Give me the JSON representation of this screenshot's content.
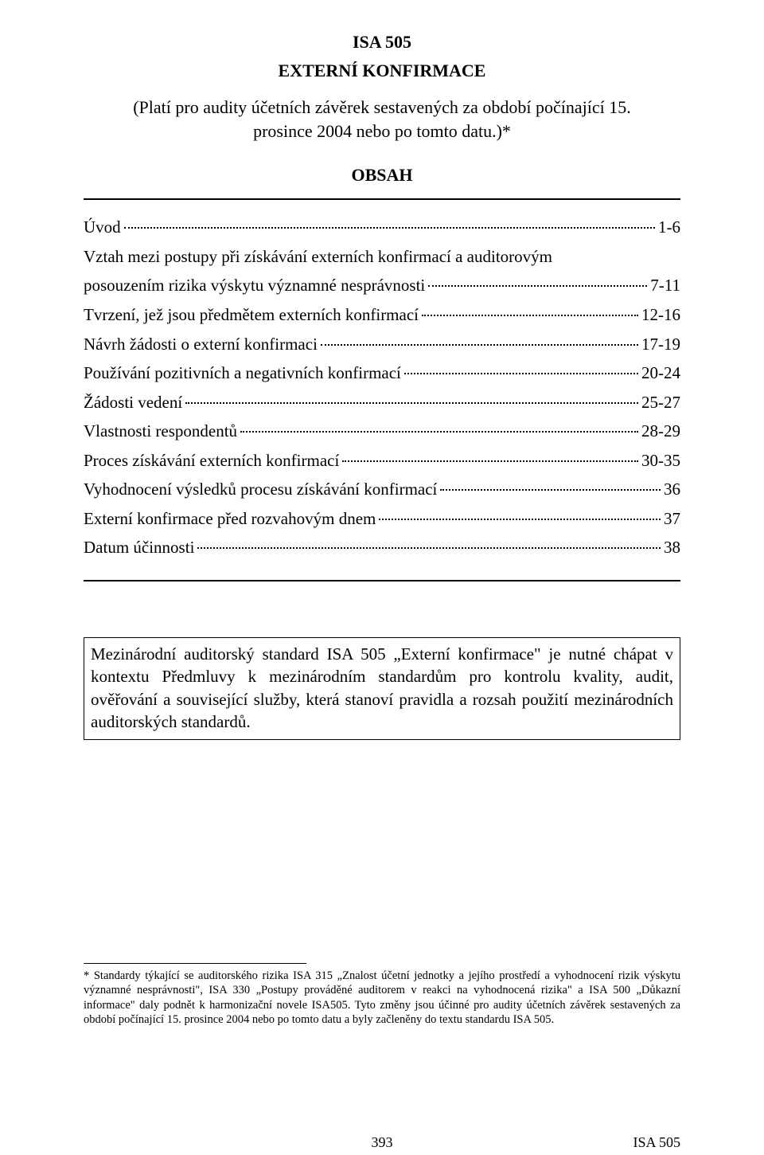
{
  "header": {
    "isa_num": "ISA 505",
    "title": "EXTERNÍ KONFIRMACE",
    "applicability": "(Platí pro audity účetních závěrek sestavených za období počínající 15. prosince 2004 nebo po tomto datu.)*"
  },
  "obsa_label": "OBSAH",
  "toc": [
    {
      "label": "Úvod",
      "page": "1-6"
    },
    {
      "label": "Vztah mezi postupy při získávání externích konfirmací a auditorovým",
      "page": "",
      "no_leader": true
    },
    {
      "label": "posouzením rizika výskytu významné nesprávnosti",
      "page": "7-11"
    },
    {
      "label": "Tvrzení, jež jsou předmětem externích konfirmací",
      "page": "12-16"
    },
    {
      "label": "Návrh žádosti o externí konfirmaci",
      "page": "17-19"
    },
    {
      "label": "Používání pozitivních a negativních konfirmací",
      "page": "20-24"
    },
    {
      "label": "Žádosti vedení",
      "page": "25-27"
    },
    {
      "label": "Vlastnosti respondentů",
      "page": "28-29"
    },
    {
      "label": "Proces získávání externích konfirmací",
      "page": "30-35"
    },
    {
      "label": "Vyhodnocení výsledků procesu získávání konfirmací",
      "page": "36"
    },
    {
      "label": "Externí konfirmace před rozvahovým dnem",
      "page": "37"
    },
    {
      "label": "Datum účinnosti",
      "page": "38"
    }
  ],
  "note_box": "Mezinárodní auditorský standard ISA 505 „Externí konfirmace\" je nutné chápat v kontextu Předmluvy k mezinárodním standardům pro kontrolu kvality, audit, ověřování a související služby, která stanoví pravidla a rozsah použití mezinárodních auditorských standardů.",
  "footnote": "* Standardy  týkající se auditorského rizika ISA 315 „Znalost účetní jednotky a jejího prostředí a vyhodnocení rizik výskytu významné nesprávnosti\", ISA 330 „Postupy prováděné auditorem v reakci na vyhodnocená rizika\" a ISA 500 „Důkazní informace\" daly podnět k harmonizační novele ISA505. Tyto změny jsou účinné pro audity  účetních závěrek sestavených za období  počínající 15. prosince 2004  nebo po tomto datu a byly začleněny do textu standardu ISA 505.",
  "footer": {
    "page_num": "393",
    "page_isa": "ISA 505"
  }
}
